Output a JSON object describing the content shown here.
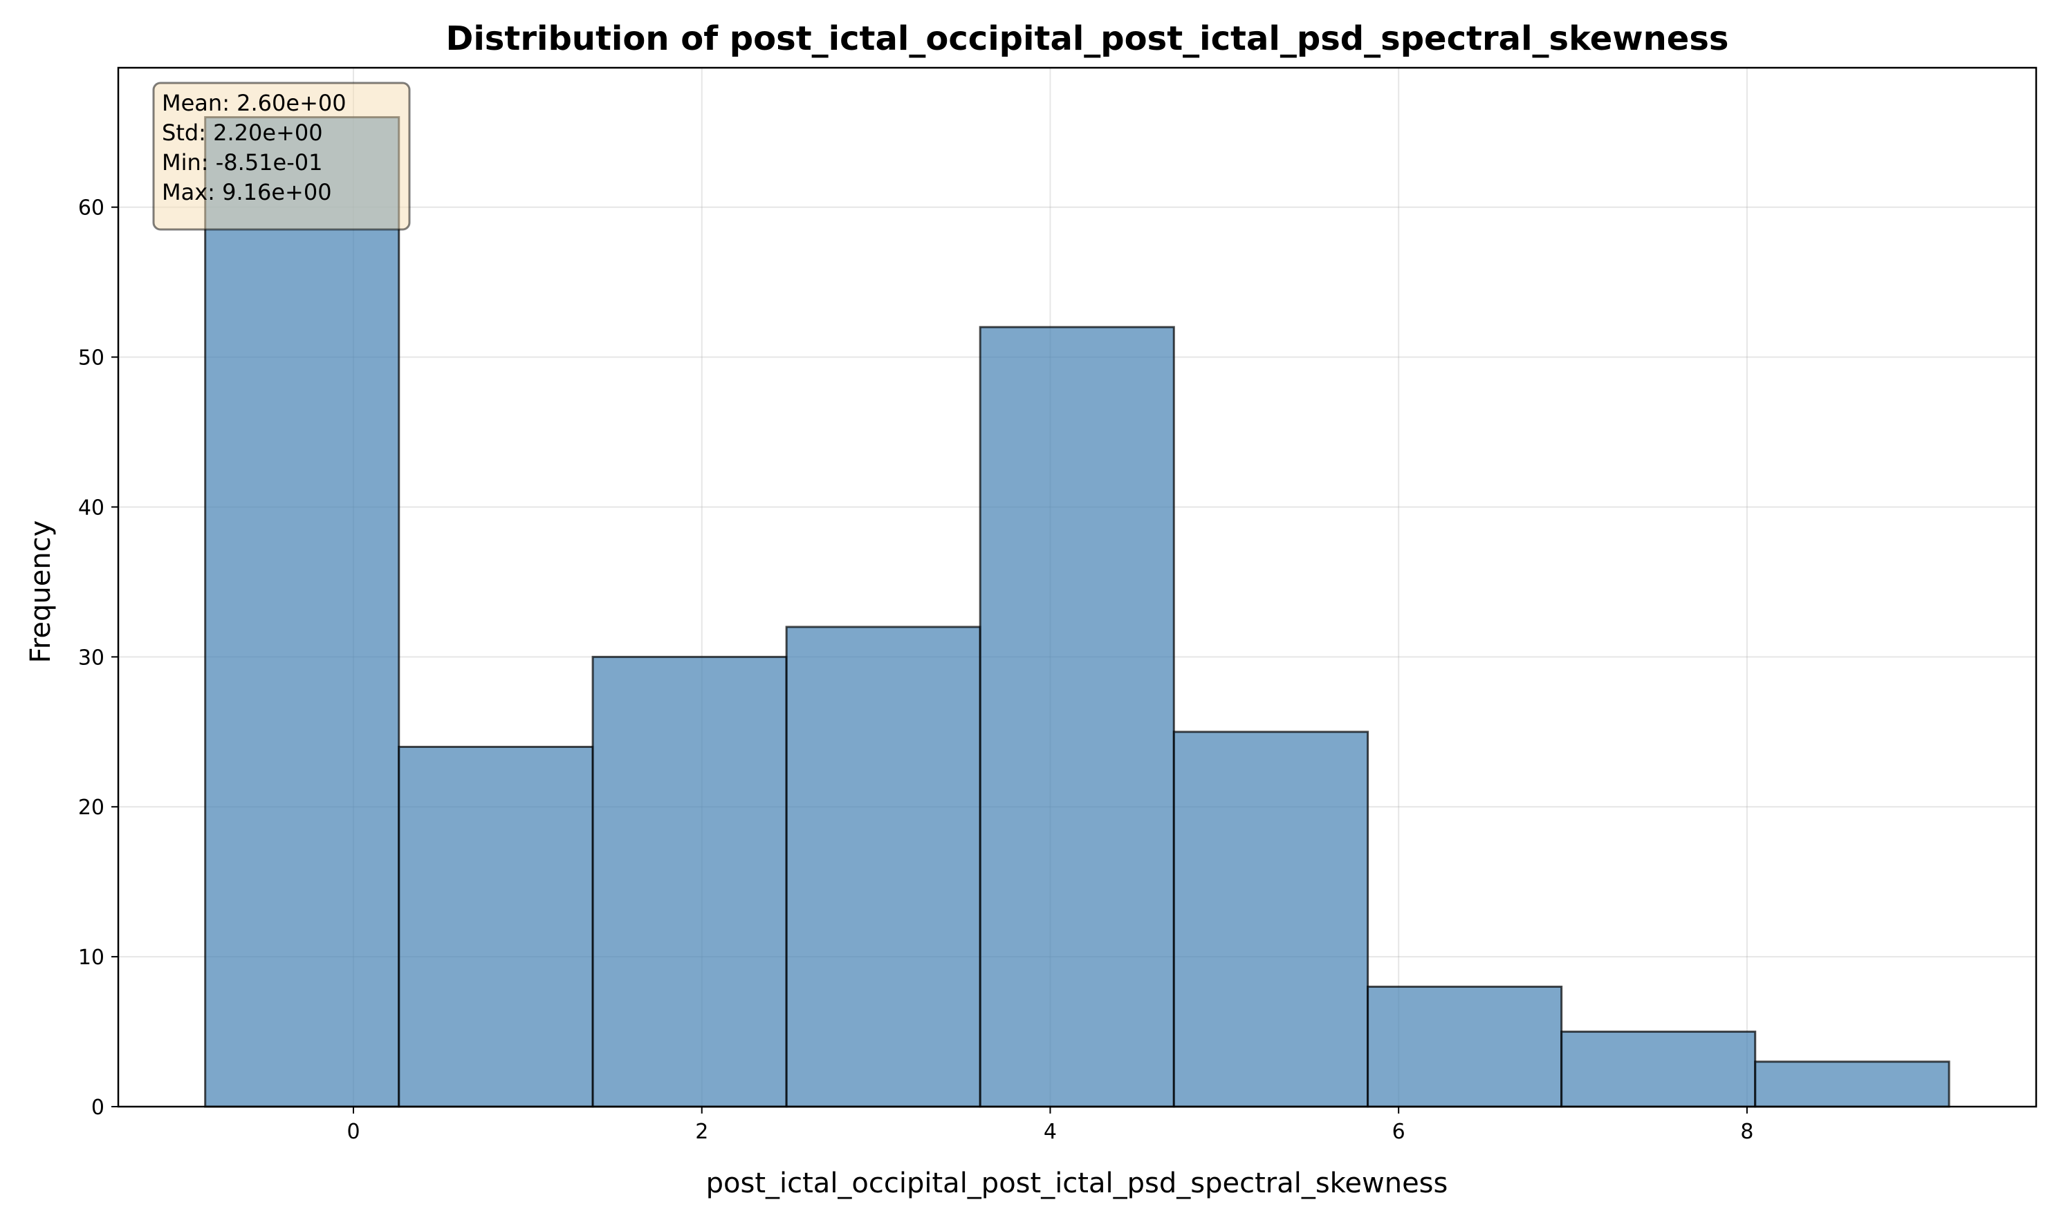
{
  "chart_data": {
    "type": "bar",
    "title": "Distribution of post_ictal_occipital_post_ictal_psd_spectral_skewness",
    "xlabel": "post_ictal_occipital_post_ictal_psd_spectral_skewness",
    "ylabel": "Frequency",
    "bin_edges": [
      -0.851,
      0.261,
      1.374,
      2.486,
      3.598,
      4.71,
      5.823,
      6.935,
      8.047,
      9.16
    ],
    "counts": [
      66,
      24,
      30,
      32,
      52,
      25,
      8,
      5,
      3
    ],
    "xlim": [
      -1.35,
      9.66
    ],
    "ylim": [
      0,
      69.3
    ],
    "x_ticks": [
      0,
      2,
      4,
      6,
      8
    ],
    "y_ticks": [
      0,
      10,
      20,
      30,
      40,
      50,
      60
    ],
    "grid": true,
    "bar_color": "#4682b4",
    "stats_box": {
      "placement": "top-left",
      "lines": [
        "Mean: 2.60e+00",
        "Std: 2.20e+00",
        "Min: -8.51e-01",
        "Max: 9.16e+00"
      ]
    }
  }
}
